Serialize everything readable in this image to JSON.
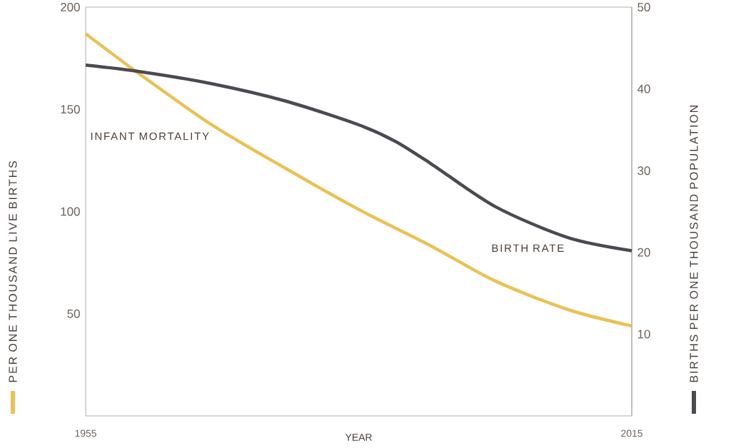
{
  "chart_data": {
    "type": "line",
    "xlabel": "YEAR",
    "ylabel": "PER ONE THOUSAND LIVE BIRTHS",
    "y2label": "BIRTHS PER ONE THOUSAND POPULATION",
    "x": [
      1955,
      1961,
      1969,
      1977,
      1985,
      1993,
      2000,
      2008,
      2015
    ],
    "xlim": [
      1955,
      2015
    ],
    "xticks": [
      1955,
      2015
    ],
    "ylim": [
      0,
      200
    ],
    "yticks": [
      50,
      100,
      150,
      200
    ],
    "y2lim": [
      0,
      50
    ],
    "y2ticks": [
      10,
      20,
      30,
      40,
      50
    ],
    "marker": "none",
    "line_style": "solid",
    "series": [
      {
        "name": "INFANT MORTALITY",
        "color": "#ebc156",
        "values": [
          187,
          167,
          142,
          121,
          101,
          83,
          66,
          52,
          44
        ]
      },
      {
        "name": "BIRTH RATE",
        "color": "#4a4a50",
        "axis": "y2",
        "x": [
          1955,
          1961,
          1969,
          1977,
          1985,
          1989,
          1993,
          2000,
          2008,
          2015
        ],
        "values": [
          42.9,
          42.1,
          40.6,
          38.5,
          35.6,
          33.6,
          30.8,
          25.6,
          21.8,
          20.2
        ]
      }
    ]
  }
}
